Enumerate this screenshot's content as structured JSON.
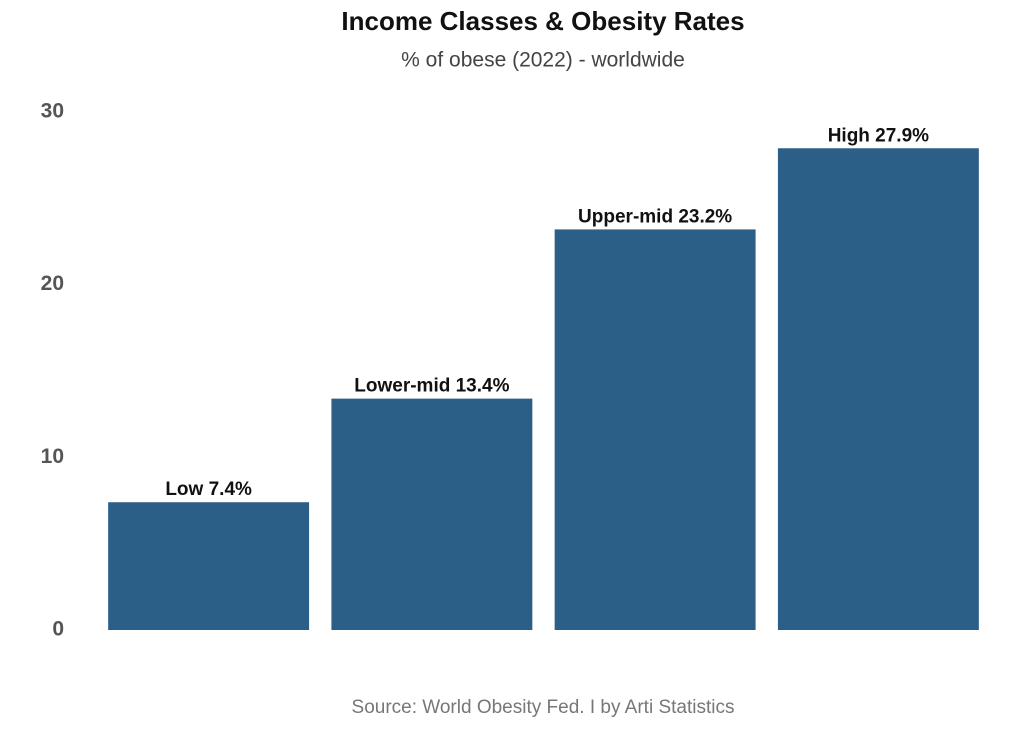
{
  "chart_data": {
    "type": "bar",
    "title": "Income Classes & Obesity Rates",
    "subtitle": "% of obese (2022) - worldwide",
    "source": "Source: World Obesity Fed. I by Arti Statistics",
    "categories": [
      null,
      null,
      null,
      null
    ],
    "values": [
      7.4,
      13.4,
      23.2,
      27.9
    ],
    "value_labels": [
      "Low 7.4%",
      "Lower-mid 13.4%",
      "Upper-mid 23.2%",
      "High 27.9%"
    ],
    "color": "#2c5f88",
    "ylim": [
      0,
      30
    ],
    "yticks": [
      0,
      10,
      20,
      30
    ],
    "grid": false
  }
}
